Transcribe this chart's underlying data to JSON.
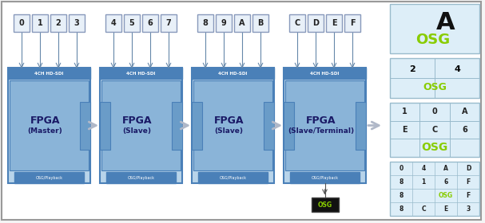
{
  "main_bg": "#f5f5f5",
  "diagram_bg": "#ffffff",
  "fpga_blocks": [
    {
      "label_line1": "FPGA",
      "label_line2": "(Master)",
      "channels": [
        "0",
        "1",
        "2",
        "3"
      ],
      "role": "master"
    },
    {
      "label_line1": "FPGA",
      "label_line2": "(Slave)",
      "channels": [
        "4",
        "5",
        "6",
        "7"
      ],
      "role": "slave"
    },
    {
      "label_line1": "FPGA",
      "label_line2": "(Slave)",
      "channels": [
        "8",
        "9",
        "A",
        "B"
      ],
      "role": "slave"
    },
    {
      "label_line1": "FPGA",
      "label_line2": "(Slave/Terminal)",
      "channels": [
        "C",
        "D",
        "E",
        "F"
      ],
      "role": "slave_terminal"
    }
  ],
  "fpga_outer_color": "#b8d4ea",
  "fpga_inner_color": "#8ab4d8",
  "fpga_dark_color": "#4a80b8",
  "fpga_side_color": "#6a9cc8",
  "hdsdi_label": "4CH HD-SDI",
  "osg_label": "OSG/Playback",
  "channel_bg": "#e8f0f8",
  "channel_border": "#8899bb",
  "arrow_color": "#c0c0c0",
  "arrow_between_color": "#b0b8c8",
  "osg_black_bg": "#111111",
  "osg_green": "#88cc00",
  "right_panel_bg": "#ddeef8",
  "right_panel_border": "#99bbcc",
  "grid_line_color": "#99bbcc",
  "border_color": "#999999"
}
